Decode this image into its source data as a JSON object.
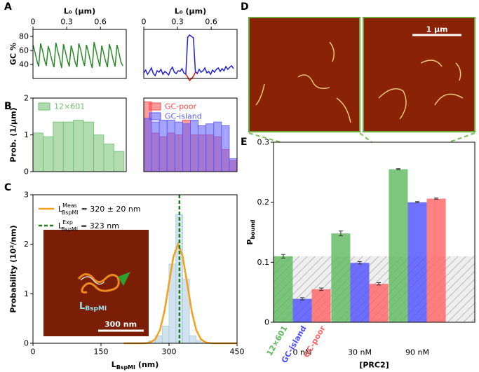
{
  "panel_labels": [
    "A",
    "B",
    "C",
    "D",
    "E"
  ],
  "images": {
    "scale_bar": "1 µm",
    "inset_scale_bar": "300 nm",
    "inset_label": {
      "main": "L",
      "sub": "BspMI"
    }
  },
  "chart_data": [
    {
      "type": "line",
      "xlabel": "L₀ (µm)",
      "ylabel": "GC %",
      "xaxis": "top",
      "xlim": [
        0,
        0.83
      ],
      "xticks": [
        0,
        0.3,
        0.6
      ],
      "ylim": [
        20,
        90
      ],
      "yticks": [
        40,
        60,
        80
      ],
      "x": [
        0,
        0.017,
        0.034,
        0.051,
        0.068,
        0.085,
        0.102,
        0.119,
        0.136,
        0.153,
        0.17,
        0.187,
        0.204,
        0.221,
        0.238,
        0.255,
        0.272,
        0.289,
        0.306,
        0.323,
        0.34,
        0.357,
        0.374,
        0.391,
        0.408,
        0.425,
        0.442,
        0.459,
        0.476,
        0.493,
        0.51,
        0.527,
        0.544,
        0.561,
        0.578,
        0.595,
        0.612,
        0.629,
        0.646,
        0.663,
        0.68,
        0.697,
        0.714,
        0.731,
        0.748,
        0.765,
        0.782,
        0.799
      ],
      "series": [
        {
          "color": "#2a8a2a",
          "values": [
            68,
            58,
            46,
            37,
            70,
            60,
            47,
            38,
            66,
            57,
            45,
            36,
            71,
            59,
            48,
            35,
            69,
            58,
            46,
            37,
            67,
            57,
            44,
            36,
            70,
            61,
            47,
            38,
            68,
            58,
            45,
            35,
            72,
            60,
            48,
            37,
            67,
            56,
            45,
            36,
            69,
            59,
            46,
            37,
            68,
            57,
            44,
            38
          ]
        }
      ]
    },
    {
      "type": "line",
      "xlabel": "L₀ (µm)",
      "xaxis": "top",
      "xlim": [
        0,
        0.83
      ],
      "xticks": [
        0,
        0.3,
        0.6
      ],
      "ylim": [
        20,
        90
      ],
      "x": [
        0,
        0.017,
        0.034,
        0.051,
        0.068,
        0.085,
        0.102,
        0.119,
        0.136,
        0.153,
        0.17,
        0.187,
        0.204,
        0.221,
        0.238,
        0.255,
        0.272,
        0.289,
        0.306,
        0.323,
        0.34,
        0.357,
        0.374,
        0.391,
        0.408,
        0.425,
        0.442,
        0.459,
        0.476,
        0.493,
        0.51,
        0.527,
        0.544,
        0.561,
        0.578,
        0.595,
        0.612,
        0.629,
        0.646,
        0.663,
        0.68,
        0.697,
        0.714,
        0.731,
        0.748,
        0.765,
        0.782,
        0.799
      ],
      "series": [
        {
          "color": "#1f1fd6",
          "values": [
            28,
            32,
            26,
            30,
            35,
            27,
            24,
            31,
            29,
            33,
            26,
            30,
            28,
            25,
            32,
            36,
            29,
            27,
            31,
            30,
            34,
            28,
            26,
            79,
            82,
            80,
            78,
            30,
            27,
            33,
            29,
            31,
            35,
            28,
            30,
            26,
            32,
            29,
            33,
            35,
            30,
            34,
            31,
            37,
            33,
            36,
            38,
            34
          ]
        },
        {
          "color": "#e01010",
          "values": [
            null,
            null,
            null,
            null,
            null,
            null,
            null,
            null,
            null,
            null,
            null,
            null,
            null,
            null,
            null,
            null,
            null,
            null,
            null,
            null,
            null,
            null,
            26,
            22,
            17,
            20,
            23,
            29,
            null,
            null,
            null,
            null,
            null,
            null,
            null,
            null,
            null,
            null,
            null,
            null,
            null,
            null,
            null,
            null,
            null,
            null,
            null,
            null
          ]
        }
      ]
    },
    {
      "type": "histogram",
      "ylabel": "Prob. (1/µm)",
      "legend": "upper left",
      "xlim": [
        0,
        0.83
      ],
      "ylim": [
        0,
        2
      ],
      "yticks": [
        0,
        1,
        2
      ],
      "bins": [
        0,
        0.09,
        0.18,
        0.27,
        0.36,
        0.45,
        0.54,
        0.63,
        0.72,
        0.81
      ],
      "series": [
        {
          "name": "12×601",
          "color": "#6fbf6f",
          "values": [
            1.05,
            0.95,
            1.35,
            1.35,
            1.4,
            1.35,
            1.0,
            0.75,
            0.55
          ]
        }
      ]
    },
    {
      "type": "histogram",
      "legend": "upper right",
      "xlim": [
        0,
        0.84
      ],
      "ylim": [
        0,
        2
      ],
      "bins": [
        0,
        0.07,
        0.14,
        0.21,
        0.28,
        0.35,
        0.42,
        0.49,
        0.56,
        0.63,
        0.7,
        0.77,
        0.84
      ],
      "series": [
        {
          "name": "GC-poor",
          "color": "#ff4a4a",
          "values": [
            1.9,
            1.05,
            0.95,
            1.05,
            1.0,
            1.4,
            1.0,
            1.0,
            1.0,
            0.95,
            0.6,
            0.3
          ]
        },
        {
          "name": "GC-island",
          "color": "#5a5aff",
          "values": [
            1.45,
            1.35,
            1.4,
            1.4,
            1.35,
            1.3,
            1.4,
            1.25,
            1.3,
            1.35,
            1.25,
            0.35
          ]
        }
      ]
    },
    {
      "type": "histogram",
      "xlabel": {
        "main": "L",
        "sub": "BspMI",
        "rest": "(nm)"
      },
      "ylabel": "Probability (10²/nm)",
      "xaxis": "bottom",
      "xlim": [
        0,
        450
      ],
      "xticks": [
        0,
        150,
        300,
        450
      ],
      "ylim": [
        0,
        3
      ],
      "yticks": [
        0,
        1,
        2,
        3
      ],
      "bins": [
        255,
        270,
        285,
        300,
        315,
        330,
        345,
        360,
        375
      ],
      "series": [
        {
          "color": "#a9cbe0",
          "values": [
            0.05,
            0.15,
            0.35,
            1.6,
            2.6,
            1.3,
            0.15,
            0.05
          ]
        }
      ],
      "fit": {
        "label": {
          "main": "L",
          "sup": "Meas",
          "sub": "BspMI",
          "rest": "= 320 ± 20 nm"
        },
        "color": "#f5a01a",
        "x": [
          200,
          220,
          240,
          250,
          260,
          270,
          280,
          290,
          300,
          310,
          320,
          330,
          340,
          350,
          360,
          370,
          380,
          390,
          400,
          420,
          440,
          450
        ],
        "values": [
          0,
          0,
          0.0007,
          0.0044,
          0.022,
          0.088,
          0.27,
          0.65,
          1.21,
          1.76,
          2.0,
          1.76,
          1.21,
          0.65,
          0.27,
          0.088,
          0.022,
          0.0044,
          0.0007,
          0,
          0,
          0
        ]
      },
      "reference": {
        "label": {
          "main": "L",
          "sup": "Exp",
          "sub": "BspMI",
          "rest": "= 323 nm"
        },
        "color": "#1e7a1e",
        "value": 323
      }
    },
    {
      "type": "bar",
      "ylabel": {
        "main": "P",
        "sub": "bound"
      },
      "xlabel": "[PRC2]",
      "ylim": [
        0,
        0.3
      ],
      "yticks": [
        0,
        0.1,
        0.2,
        0.3
      ],
      "band": true,
      "categories": [
        "0 nM",
        "30 nM",
        "90 nM"
      ],
      "series": [
        {
          "name": "12×601",
          "color": "#5cb85c",
          "values": [
            0.11,
            0.148,
            0.255
          ],
          "errors": [
            0.003,
            0.004,
            0.001
          ]
        },
        {
          "name": "GC-island",
          "color": "#4d4dff",
          "values": [
            0.039,
            0.099,
            0.2
          ],
          "errors": [
            0.002,
            0.002,
            0.001
          ]
        },
        {
          "name": "GC-poor",
          "color": "#ff6161",
          "values": [
            0.055,
            0.064,
            0.206
          ],
          "errors": [
            0.002,
            0.002,
            0.001
          ]
        }
      ]
    }
  ]
}
